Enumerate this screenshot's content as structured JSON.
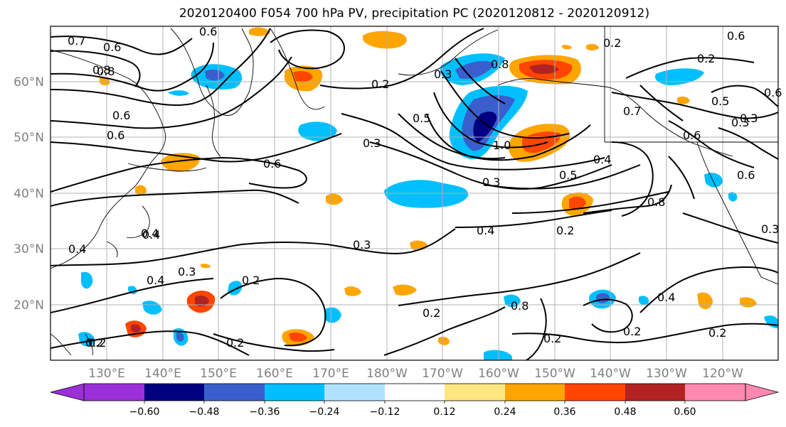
{
  "title": "2020120400 F054 700 hPa PV, precipitation PC (2020120812 - 2020120912)",
  "axes": {
    "lat_labels": [
      "60°N",
      "50°N",
      "40°N",
      "30°N",
      "20°N"
    ],
    "lon_labels": [
      "130°E",
      "140°E",
      "150°E",
      "160°E",
      "170°E",
      "180°W",
      "170°W",
      "160°W",
      "150°W",
      "140°W",
      "130°W",
      "120°W"
    ],
    "label_color": "#808080"
  },
  "contour_labels": [
    "0.7",
    "0.6",
    "0.8",
    "0.6",
    "0.6",
    "0.2",
    "0.3",
    "0.5",
    "1.0",
    "0.8",
    "0.4",
    "0.3",
    "0.4",
    "0.3",
    "0.6",
    "0.5",
    "0.8",
    "0.2",
    "0.4",
    "0.3",
    "0.4",
    "0.2",
    "0.2",
    "0.2",
    "0.2",
    "0.8",
    "0.2",
    "0.2",
    "0.4",
    "0.2",
    "0.6",
    "0.7",
    "0.5",
    "0.6",
    "0.3",
    "0.6",
    "0.3",
    "0.6",
    "0.4",
    "0.4",
    "0.2",
    "0.3",
    "0.2",
    "0.6",
    "0.8",
    "0.3",
    "0.2"
  ],
  "colorbar": {
    "tick_labels": [
      "−0.60",
      "−0.48",
      "−0.36",
      "−0.24",
      "−0.12",
      "0.12",
      "0.24",
      "0.36",
      "0.48",
      "0.60"
    ],
    "under_color": "#9b30d9",
    "over_color": "#ff88b0",
    "colors": [
      "#000080",
      "#3a5fcd",
      "#00bfff",
      "#b0e2ff",
      "#ffffff",
      "#ffffff",
      "#ffe680",
      "#ffa500",
      "#ff4500",
      "#b22222"
    ]
  }
}
